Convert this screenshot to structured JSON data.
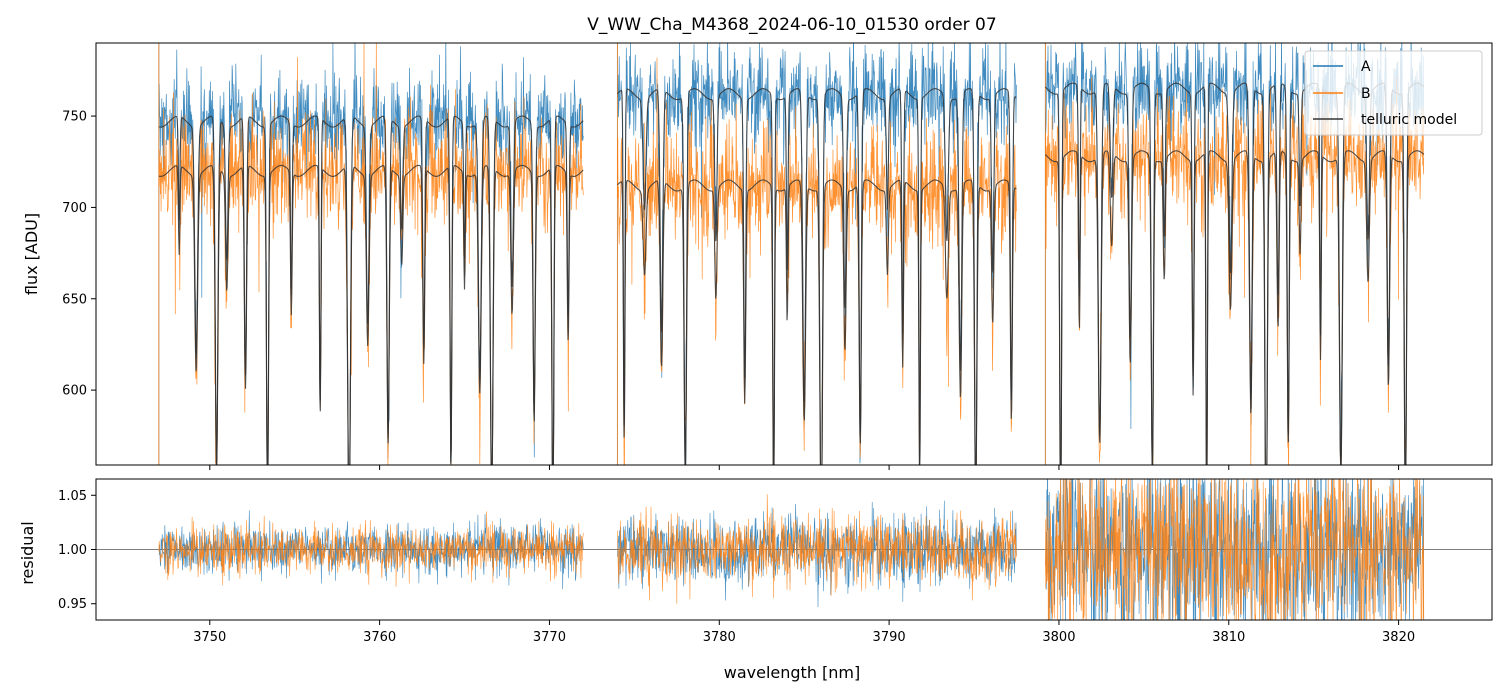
{
  "chart_data": [
    {
      "type": "line",
      "panel": "top",
      "title": "V_WW_Cha_M4368_2024-06-10_01530  order 07",
      "xlabel": "",
      "ylabel": "flux [ADU]",
      "xlim": [
        3743.3,
        3825.5
      ],
      "ylim": [
        559,
        790
      ],
      "yticks": [
        600,
        650,
        700,
        750
      ],
      "ytick_labels": [
        "600",
        "650",
        "700",
        "750"
      ],
      "segments": [
        {
          "start": 3747.0,
          "end": 3772.0
        },
        {
          "start": 3774.0,
          "end": 3797.5
        },
        {
          "start": 3799.2,
          "end": 3821.5
        }
      ],
      "series": [
        {
          "name": "A",
          "color": "#1f77b4",
          "continuum": [
            747,
            762,
            765
          ],
          "noise": 14
        },
        {
          "name": "B",
          "color": "#ff7f0e",
          "continuum": [
            720,
            712,
            728
          ],
          "noise": 16
        },
        {
          "name": "telluric model",
          "color": "#333333",
          "continuum": [
            748,
            762,
            748
          ]
        }
      ],
      "absorption_lines_nm": [
        3748.2,
        3749.2,
        3750.4,
        3751.0,
        3752.1,
        3753.4,
        3754.8,
        3756.5,
        3758.2,
        3759.3,
        3760.5,
        3761.3,
        3762.6,
        3764.2,
        3765.0,
        3765.9,
        3766.6,
        3767.8,
        3769.1,
        3770.2,
        3771.1,
        3774.4,
        3775.6,
        3776.6,
        3778.0,
        3779.8,
        3781.5,
        3783.2,
        3784.0,
        3785.0,
        3786.0,
        3787.4,
        3788.3,
        3789.9,
        3790.8,
        3791.8,
        3793.4,
        3794.2,
        3795.1,
        3796.1,
        3797.2,
        3800.1,
        3801.2,
        3802.4,
        3803.1,
        3804.2,
        3805.5,
        3806.2,
        3807.9,
        3808.7,
        3810.1,
        3811.3,
        3812.2,
        3812.9,
        3813.5,
        3814.2,
        3815.4,
        3816.6,
        3818.2,
        3819.4,
        3820.4
      ],
      "legend": {
        "position": "top-right",
        "entries": [
          "A",
          "B",
          "telluric model"
        ]
      }
    },
    {
      "type": "line",
      "panel": "bottom",
      "xlabel": "wavelength [nm]",
      "ylabel": "residual",
      "xlim": [
        3743.3,
        3825.5
      ],
      "ylim": [
        0.935,
        1.065
      ],
      "reference_line": 1.0,
      "xticks": [
        3750,
        3760,
        3770,
        3780,
        3790,
        3800,
        3810,
        3820
      ],
      "xtick_labels": [
        "3750",
        "3760",
        "3770",
        "3780",
        "3790",
        "3800",
        "3810",
        "3820"
      ],
      "yticks": [
        0.95,
        1.0,
        1.05
      ],
      "ytick_labels": [
        "0.95",
        "1.00",
        "1.05"
      ],
      "segment_noise": [
        0.011,
        0.016,
        0.045
      ],
      "series": [
        {
          "name": "A",
          "color": "#1f77b4"
        },
        {
          "name": "B",
          "color": "#ff7f0e"
        }
      ]
    }
  ]
}
